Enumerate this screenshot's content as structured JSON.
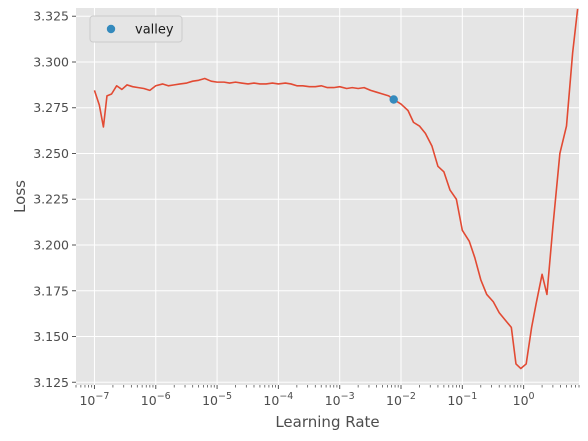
{
  "chart_data": {
    "type": "line",
    "xscale": "log",
    "xlabel": "Learning Rate",
    "ylabel": "Loss",
    "xlim": [
      5e-08,
      8
    ],
    "ylim": [
      3.1235,
      3.3295
    ],
    "grid": true,
    "legend_position": "top-left",
    "x_ticks": [
      {
        "value": 1e-07,
        "base": "10",
        "exp": "−7"
      },
      {
        "value": 1e-06,
        "base": "10",
        "exp": "−6"
      },
      {
        "value": 1e-05,
        "base": "10",
        "exp": "−5"
      },
      {
        "value": 0.0001,
        "base": "10",
        "exp": "−4"
      },
      {
        "value": 0.001,
        "base": "10",
        "exp": "−3"
      },
      {
        "value": 0.01,
        "base": "10",
        "exp": "−2"
      },
      {
        "value": 0.1,
        "base": "10",
        "exp": "−1"
      },
      {
        "value": 1,
        "base": "10",
        "exp": "0"
      }
    ],
    "y_ticks": [
      {
        "value": 3.125,
        "label": "3.125"
      },
      {
        "value": 3.15,
        "label": "3.150"
      },
      {
        "value": 3.175,
        "label": "3.175"
      },
      {
        "value": 3.2,
        "label": "3.200"
      },
      {
        "value": 3.225,
        "label": "3.225"
      },
      {
        "value": 3.25,
        "label": "3.250"
      },
      {
        "value": 3.275,
        "label": "3.275"
      },
      {
        "value": 3.3,
        "label": "3.300"
      },
      {
        "value": 3.325,
        "label": "3.325"
      }
    ],
    "series": [
      {
        "color": "#e24a33",
        "points": [
          [
            1e-07,
            3.2845
          ],
          [
            1.2e-07,
            3.2765
          ],
          [
            1.4e-07,
            3.2645
          ],
          [
            1.6e-07,
            3.2815
          ],
          [
            1.9e-07,
            3.2825
          ],
          [
            2.3e-07,
            3.287
          ],
          [
            2.8e-07,
            3.285
          ],
          [
            3.4e-07,
            3.2875
          ],
          [
            4.2e-07,
            3.2865
          ],
          [
            5.2e-07,
            3.286
          ],
          [
            6.4e-07,
            3.2855
          ],
          [
            8e-07,
            3.2845
          ],
          [
            1e-06,
            3.287
          ],
          [
            1.3e-06,
            3.288
          ],
          [
            1.6e-06,
            3.287
          ],
          [
            2e-06,
            3.2875
          ],
          [
            2.5e-06,
            3.288
          ],
          [
            3.2e-06,
            3.2885
          ],
          [
            4e-06,
            3.2895
          ],
          [
            5e-06,
            3.29
          ],
          [
            6.3e-06,
            3.291
          ],
          [
            8e-06,
            3.2895
          ],
          [
            1e-05,
            3.289
          ],
          [
            1.3e-05,
            3.289
          ],
          [
            1.6e-05,
            3.2885
          ],
          [
            2e-05,
            3.289
          ],
          [
            2.5e-05,
            3.2885
          ],
          [
            3.2e-05,
            3.288
          ],
          [
            4e-05,
            3.2885
          ],
          [
            5e-05,
            3.288
          ],
          [
            6.3e-05,
            3.288
          ],
          [
            8e-05,
            3.2885
          ],
          [
            0.0001,
            3.288
          ],
          [
            0.00013,
            3.2885
          ],
          [
            0.00016,
            3.288
          ],
          [
            0.0002,
            3.287
          ],
          [
            0.00025,
            3.287
          ],
          [
            0.00032,
            3.2865
          ],
          [
            0.0004,
            3.2865
          ],
          [
            0.0005,
            3.287
          ],
          [
            0.00063,
            3.286
          ],
          [
            0.0008,
            3.286
          ],
          [
            0.001,
            3.2865
          ],
          [
            0.0013,
            3.2855
          ],
          [
            0.0016,
            3.286
          ],
          [
            0.002,
            3.2855
          ],
          [
            0.0025,
            3.286
          ],
          [
            0.0032,
            3.2845
          ],
          [
            0.004,
            3.2835
          ],
          [
            0.005,
            3.2825
          ],
          [
            0.0063,
            3.2815
          ],
          [
            0.0076,
            3.2795
          ],
          [
            0.01,
            3.277
          ],
          [
            0.013,
            3.2735
          ],
          [
            0.016,
            3.267
          ],
          [
            0.02,
            3.265
          ],
          [
            0.025,
            3.261
          ],
          [
            0.032,
            3.254
          ],
          [
            0.04,
            3.243
          ],
          [
            0.05,
            3.24
          ],
          [
            0.063,
            3.23
          ],
          [
            0.08,
            3.225
          ],
          [
            0.1,
            3.208
          ],
          [
            0.13,
            3.202
          ],
          [
            0.16,
            3.193
          ],
          [
            0.2,
            3.181
          ],
          [
            0.25,
            3.173
          ],
          [
            0.32,
            3.169
          ],
          [
            0.4,
            3.163
          ],
          [
            0.5,
            3.159
          ],
          [
            0.63,
            3.155
          ],
          [
            0.75,
            3.135
          ],
          [
            0.9,
            3.1325
          ],
          [
            1.1,
            3.135
          ],
          [
            1.35,
            3.155
          ],
          [
            1.6,
            3.168
          ],
          [
            2.0,
            3.184
          ],
          [
            2.4,
            3.173
          ],
          [
            3.0,
            3.21
          ],
          [
            3.9,
            3.25
          ],
          [
            5.0,
            3.265
          ],
          [
            6.3,
            3.305
          ],
          [
            7.6,
            3.329
          ]
        ]
      }
    ],
    "marker": {
      "label": "valley",
      "x": 0.0076,
      "y": 3.2795,
      "color": "#348abd"
    },
    "style": {
      "plot_background": "#e5e5e5",
      "grid_color": "#ffffff",
      "text_color": "#4d4d4d"
    }
  }
}
